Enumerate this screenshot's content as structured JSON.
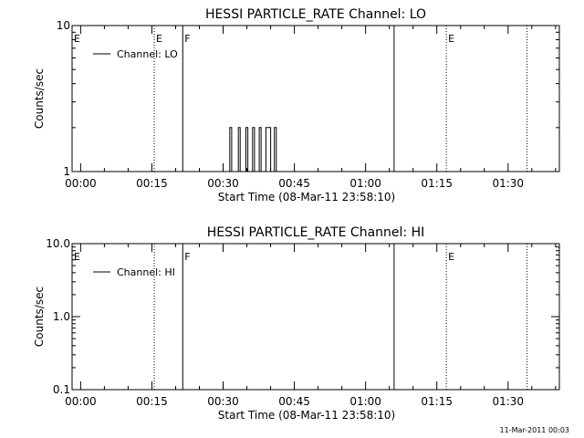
{
  "footer_timestamp": "11-Mar-2011 00:03",
  "chart_data": [
    {
      "type": "line",
      "title": "HESSI PARTICLE_RATE Channel: LO",
      "xlabel": "Start Time (08-Mar-11 23:58:10)",
      "ylabel": "Counts/sec",
      "x_unit": "minutes since 00:00",
      "xlim": [
        -1.8,
        100.8
      ],
      "x_ticks": [
        {
          "value": 0,
          "label": "00:00"
        },
        {
          "value": 15,
          "label": "00:15"
        },
        {
          "value": 30,
          "label": "00:30"
        },
        {
          "value": 45,
          "label": "00:45"
        },
        {
          "value": 60,
          "label": "01:00"
        },
        {
          "value": 75,
          "label": "01:15"
        },
        {
          "value": 90,
          "label": "01:30"
        }
      ],
      "x_minor_step": 5,
      "y_scale": "log",
      "ylim": [
        1,
        10
      ],
      "y_ticks": [
        {
          "value": 1,
          "label": "1"
        },
        {
          "value": 10,
          "label": "10"
        }
      ],
      "legend": {
        "position": "top-left",
        "entries": [
          "Channel: LO"
        ]
      },
      "series": [
        {
          "name": "Channel: LO",
          "points": [
            [
              28.0,
              1
            ],
            [
              31.4,
              1
            ],
            [
              31.4,
              2
            ],
            [
              31.8,
              2
            ],
            [
              31.8,
              1
            ],
            [
              33.2,
              1
            ],
            [
              33.2,
              2
            ],
            [
              33.6,
              2
            ],
            [
              33.6,
              1
            ],
            [
              34.8,
              1
            ],
            [
              34.8,
              2
            ],
            [
              35.2,
              2
            ],
            [
              35.2,
              1
            ],
            [
              36.2,
              1
            ],
            [
              36.2,
              2
            ],
            [
              36.6,
              2
            ],
            [
              36.6,
              1
            ],
            [
              37.6,
              1
            ],
            [
              37.6,
              2
            ],
            [
              38.0,
              2
            ],
            [
              38.0,
              1
            ],
            [
              39.0,
              1
            ],
            [
              39.0,
              2
            ],
            [
              40.0,
              2
            ],
            [
              40.0,
              1
            ],
            [
              40.8,
              1
            ],
            [
              40.8,
              2
            ],
            [
              41.2,
              2
            ],
            [
              41.2,
              1
            ],
            [
              42.0,
              1
            ]
          ]
        }
      ],
      "markers": [
        {
          "x": 15.5,
          "style": "dotted",
          "label": "E"
        },
        {
          "x": 21.5,
          "style": "solid",
          "label": "F"
        },
        {
          "x": 66.0,
          "style": "solid",
          "label": ""
        },
        {
          "x": 77.0,
          "style": "dotted",
          "label": "E"
        },
        {
          "x": 94.0,
          "style": "dotted",
          "label": ""
        }
      ],
      "edge_labels": [
        {
          "x": -1.8,
          "label": "E"
        }
      ]
    },
    {
      "type": "line",
      "title": "HESSI PARTICLE_RATE Channel: HI",
      "xlabel": "Start Time (08-Mar-11 23:58:10)",
      "ylabel": "Counts/sec",
      "x_unit": "minutes since 00:00",
      "xlim": [
        -1.8,
        100.8
      ],
      "x_ticks": [
        {
          "value": 0,
          "label": "00:00"
        },
        {
          "value": 15,
          "label": "00:15"
        },
        {
          "value": 30,
          "label": "00:30"
        },
        {
          "value": 45,
          "label": "00:45"
        },
        {
          "value": 60,
          "label": "01:00"
        },
        {
          "value": 75,
          "label": "01:15"
        },
        {
          "value": 90,
          "label": "01:30"
        }
      ],
      "x_minor_step": 5,
      "y_scale": "log",
      "ylim": [
        0.1,
        10
      ],
      "y_ticks": [
        {
          "value": 0.1,
          "label": "0.1"
        },
        {
          "value": 1,
          "label": "1.0"
        },
        {
          "value": 10,
          "label": "10.0"
        }
      ],
      "legend": {
        "position": "top-left",
        "entries": [
          "Channel: HI"
        ]
      },
      "series": [
        {
          "name": "Channel: HI",
          "points": []
        }
      ],
      "markers": [
        {
          "x": 15.5,
          "style": "dotted",
          "label": ""
        },
        {
          "x": 21.5,
          "style": "solid",
          "label": "F"
        },
        {
          "x": 66.0,
          "style": "solid",
          "label": ""
        },
        {
          "x": 77.0,
          "style": "dotted",
          "label": "E"
        },
        {
          "x": 94.0,
          "style": "dotted",
          "label": ""
        }
      ],
      "edge_labels": [
        {
          "x": -1.8,
          "label": "E"
        }
      ]
    }
  ]
}
